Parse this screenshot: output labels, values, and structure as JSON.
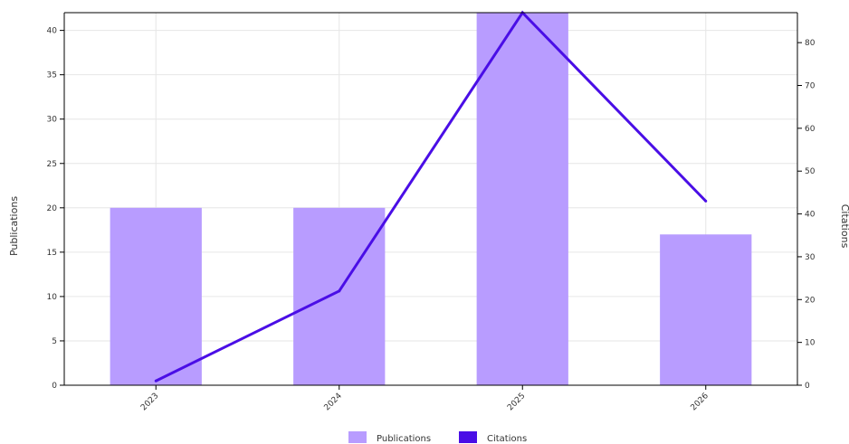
{
  "chart_data": {
    "type": "bar",
    "categories": [
      "2023",
      "2024",
      "2025",
      "2026"
    ],
    "series": [
      {
        "name": "Publications",
        "type": "bar",
        "axis": "left",
        "values": [
          20,
          20,
          42,
          17
        ],
        "color": "#b89cff"
      },
      {
        "name": "Citations",
        "type": "line",
        "axis": "right",
        "values": [
          1,
          22,
          87,
          43
        ],
        "color": "#4a0ee6"
      }
    ],
    "ylabel": "Publications",
    "y2label": "Citations",
    "ylim": [
      0,
      42
    ],
    "y2lim": [
      0,
      87
    ],
    "yticks": [
      "0",
      "5",
      "10",
      "15",
      "20",
      "25",
      "30",
      "35",
      "40"
    ],
    "y2ticks": [
      "0",
      "10",
      "20",
      "30",
      "40",
      "50",
      "60",
      "70",
      "80"
    ],
    "grid": true,
    "legend_position": "bottom"
  }
}
